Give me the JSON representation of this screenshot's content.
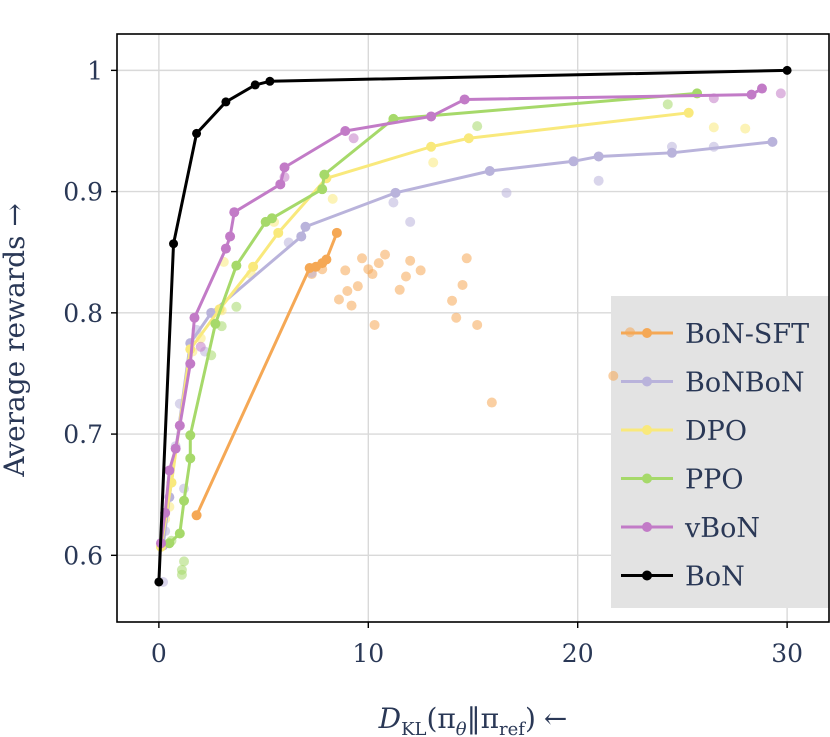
{
  "chart_data": {
    "type": "line",
    "title": "",
    "xlabel": "D_KL(π_θ‖π_ref) ←",
    "xlabel_parts": {
      "main": "D",
      "sub": "KL",
      "open": "(π",
      "theta": "θ",
      "sep": "‖π",
      "ref": "ref",
      "close": ")",
      "arrow": "←"
    },
    "ylabel": "Average rewards →",
    "xlim": [
      -2,
      32
    ],
    "ylim": [
      0.545,
      1.03
    ],
    "xticks": [
      0,
      10,
      20,
      30
    ],
    "xtick_labels": [
      "0",
      "10",
      "20",
      "30"
    ],
    "yticks": [
      0.6,
      0.7,
      0.8,
      0.9,
      1.0
    ],
    "ytick_labels": [
      "0.6",
      "0.7",
      "0.8",
      "0.9",
      "1"
    ],
    "grid": true,
    "legend_position": "lower-right",
    "series": [
      {
        "name": "BoN-SFT",
        "color": "#f5a855",
        "x": [
          1.8,
          7.2,
          7.5,
          7.8,
          8.0,
          8.5
        ],
        "y": [
          0.633,
          0.837,
          0.838,
          0.841,
          0.844,
          0.866
        ],
        "scatter_x": [
          7.3,
          7.8,
          8.6,
          8.9,
          9.0,
          9.2,
          9.5,
          9.7,
          10.0,
          10.2,
          10.3,
          10.5,
          10.8,
          11.5,
          11.8,
          12.0,
          12.5,
          14.0,
          14.2,
          14.5,
          14.7,
          15.2,
          15.9,
          21.7,
          22.5
        ],
        "scatter_y": [
          0.832,
          0.836,
          0.811,
          0.835,
          0.818,
          0.806,
          0.822,
          0.845,
          0.836,
          0.832,
          0.79,
          0.841,
          0.848,
          0.819,
          0.83,
          0.843,
          0.835,
          0.81,
          0.796,
          0.823,
          0.845,
          0.79,
          0.726,
          0.748,
          0.784
        ]
      },
      {
        "name": "BoNBoN",
        "color": "#b9b3db",
        "x": [
          0.2,
          0.5,
          1.5,
          2.5,
          6.8,
          7.0,
          11.3,
          15.8,
          19.8,
          21.0,
          24.5,
          29.3
        ],
        "y": [
          0.608,
          0.648,
          0.775,
          0.8,
          0.863,
          0.871,
          0.899,
          0.917,
          0.925,
          0.929,
          0.932,
          0.941
        ],
        "scatter_x": [
          0.2,
          0.3,
          0.6,
          0.8,
          1.0,
          1.2,
          1.8,
          2.2,
          6.2,
          7.3,
          11.2,
          12.0,
          16.6,
          21.0,
          24.5,
          26.5
        ],
        "scatter_y": [
          0.578,
          0.62,
          0.66,
          0.69,
          0.725,
          0.655,
          0.786,
          0.768,
          0.858,
          0.833,
          0.891,
          0.875,
          0.899,
          0.909,
          0.937,
          0.937
        ]
      },
      {
        "name": "DPO",
        "color": "#f9e97c",
        "x": [
          0.1,
          0.6,
          1.5,
          2.9,
          4.5,
          5.7,
          8.0,
          13.0,
          14.8,
          25.3
        ],
        "y": [
          0.607,
          0.66,
          0.77,
          0.803,
          0.838,
          0.866,
          0.911,
          0.937,
          0.944,
          0.965
        ],
        "scatter_x": [
          0.3,
          0.5,
          1.6,
          2.0,
          3.0,
          3.1,
          4.4,
          5.5,
          8.3,
          13.1,
          26.5,
          28.0
        ],
        "scatter_y": [
          0.63,
          0.64,
          0.768,
          0.779,
          0.802,
          0.842,
          0.832,
          0.875,
          0.894,
          0.924,
          0.953,
          0.952
        ]
      },
      {
        "name": "PPO",
        "color": "#a6d96a",
        "x": [
          0.5,
          1.0,
          1.2,
          1.5,
          1.5,
          2.7,
          3.7,
          5.1,
          5.4,
          7.8,
          7.9,
          11.2,
          25.7
        ],
        "y": [
          0.61,
          0.618,
          0.645,
          0.68,
          0.699,
          0.791,
          0.839,
          0.875,
          0.878,
          0.902,
          0.914,
          0.96,
          0.981
        ],
        "scatter_x": [
          0.6,
          1.1,
          1.1,
          1.2,
          2.5,
          3.0,
          3.7,
          15.2,
          24.3
        ],
        "scatter_y": [
          0.612,
          0.584,
          0.588,
          0.595,
          0.765,
          0.789,
          0.805,
          0.954,
          0.972
        ]
      },
      {
        "name": "vBoN",
        "color": "#c27bc7",
        "x": [
          0.1,
          0.3,
          0.5,
          0.8,
          1.0,
          1.5,
          1.7,
          3.2,
          3.4,
          3.6,
          5.8,
          6.0,
          8.9,
          13.0,
          14.6,
          28.3,
          28.8
        ],
        "y": [
          0.61,
          0.635,
          0.67,
          0.688,
          0.707,
          0.758,
          0.796,
          0.853,
          0.863,
          0.883,
          0.906,
          0.92,
          0.95,
          0.962,
          0.976,
          0.98,
          0.985
        ],
        "scatter_x": [
          2.0,
          6.0,
          9.3,
          26.5,
          29.7
        ],
        "scatter_y": [
          0.772,
          0.912,
          0.944,
          0.977,
          0.981
        ]
      },
      {
        "name": "BoN",
        "color": "#000000",
        "x": [
          0.0,
          0.7,
          1.8,
          3.2,
          4.6,
          5.3,
          30.0
        ],
        "y": [
          0.578,
          0.857,
          0.948,
          0.974,
          0.988,
          0.991,
          1.0
        ],
        "scatter_x": [],
        "scatter_y": []
      }
    ]
  }
}
